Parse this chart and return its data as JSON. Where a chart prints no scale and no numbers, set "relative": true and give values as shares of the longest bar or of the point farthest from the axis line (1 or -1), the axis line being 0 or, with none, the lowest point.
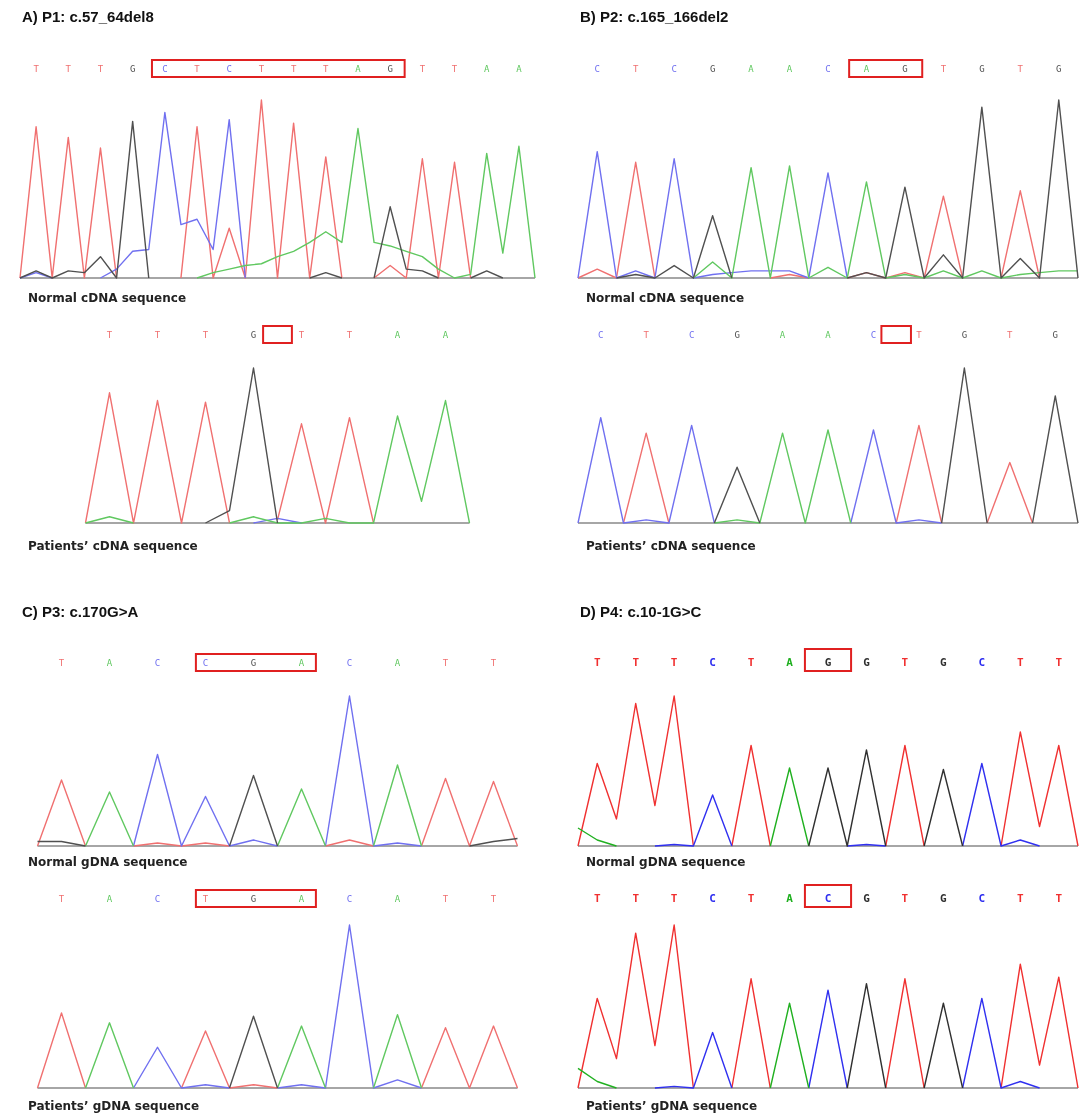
{
  "chart_data": [
    {
      "type": "line",
      "title": "A) P1: c.57_64del8",
      "xlabel": "Normal cDNA sequence",
      "relative": true,
      "categories": [
        null,
        "T",
        null,
        "T",
        null,
        "T",
        null,
        "G",
        null,
        "C",
        null,
        "T",
        null,
        "C",
        null,
        "T",
        null,
        "T",
        null,
        "T",
        null,
        "A",
        null,
        "G",
        null,
        "T",
        null,
        "T",
        null,
        "A",
        null,
        "A",
        null
      ],
      "series": [
        {
          "color": "#f07070",
          "values": [
            0,
            0.85,
            0,
            0.79,
            0,
            0.73,
            0,
            null,
            null,
            null,
            0,
            0.85,
            0,
            0.28,
            0,
            1,
            0,
            0.87,
            0,
            0.68,
            0,
            null,
            0,
            0.07,
            0,
            0.67,
            0,
            0.65,
            0,
            null,
            null,
            null,
            null
          ]
        },
        {
          "color": "#7070f0",
          "values": [
            0,
            0.03,
            0,
            null,
            null,
            0,
            0.05,
            0.15,
            0.16,
            0.93,
            0.3,
            0.33,
            0.16,
            0.89,
            0,
            null,
            null,
            null,
            null,
            null,
            null,
            null,
            null,
            null,
            null,
            null,
            null,
            null,
            null,
            null,
            null,
            null,
            null
          ]
        },
        {
          "color": "#60c860",
          "values": [
            null,
            null,
            null,
            null,
            null,
            null,
            null,
            null,
            null,
            null,
            null,
            0,
            0.03,
            0.05,
            0.07,
            0.08,
            0.12,
            0.15,
            0.2,
            0.26,
            0.2,
            0.84,
            0.2,
            0.18,
            0.15,
            0.12,
            0.05,
            0,
            0.02,
            0.7,
            0.14,
            0.74,
            0
          ]
        },
        {
          "color": "#505050",
          "values": [
            0,
            0.04,
            0,
            0.04,
            0.03,
            0.12,
            0,
            0.88,
            0,
            null,
            null,
            null,
            null,
            null,
            null,
            null,
            null,
            null,
            0,
            0.03,
            0,
            null,
            0,
            0.4,
            0.05,
            0.04,
            0,
            null,
            0,
            0.04,
            0,
            null,
            null
          ]
        }
      ]
    },
    {
      "type": "line",
      "xlabel": "Patients’ cDNA sequence",
      "relative": true,
      "categories": [
        null,
        "T",
        null,
        "T",
        null,
        "T",
        null,
        "G",
        null,
        "T",
        null,
        "T",
        null,
        "A",
        null,
        "A",
        null
      ],
      "series": [
        {
          "color": "#f07070",
          "values": [
            0,
            0.84,
            0,
            0.79,
            0,
            0.78,
            0,
            null,
            0.02,
            0.64,
            0,
            0.68,
            0,
            null,
            null,
            null,
            null
          ]
        },
        {
          "color": "#7070f0",
          "values": [
            null,
            null,
            null,
            null,
            null,
            null,
            null,
            0,
            0.03,
            0,
            null,
            null,
            null,
            null,
            null,
            null,
            null
          ]
        },
        {
          "color": "#60c860",
          "values": [
            0,
            0.04,
            0,
            null,
            null,
            null,
            0,
            0.04,
            0,
            0,
            0.03,
            0,
            0,
            0.69,
            0.14,
            0.79,
            0
          ]
        },
        {
          "color": "#505050",
          "values": [
            null,
            null,
            null,
            null,
            null,
            0,
            0.08,
            1,
            0,
            null,
            null,
            null,
            null,
            null,
            null,
            null,
            null
          ]
        }
      ]
    },
    {
      "type": "line",
      "title": "B) P2: c.165_166del2",
      "xlabel": "Normal cDNA sequence",
      "relative": true,
      "categories": [
        null,
        "C",
        null,
        "T",
        null,
        "C",
        null,
        "G",
        null,
        "A",
        null,
        "A",
        null,
        "C",
        null,
        "A",
        null,
        "G",
        null,
        "T",
        null,
        "G",
        null,
        "T",
        null,
        "G",
        null
      ],
      "series": [
        {
          "color": "#f07070",
          "values": [
            0,
            0.05,
            0,
            0.65,
            0,
            null,
            null,
            null,
            null,
            null,
            0,
            0.02,
            0,
            null,
            0,
            0.03,
            0,
            0.03,
            0,
            0.46,
            0,
            null,
            0,
            0.49,
            0,
            null,
            null
          ]
        },
        {
          "color": "#7070f0",
          "values": [
            0,
            0.71,
            0,
            0.04,
            0,
            0.67,
            0,
            0.02,
            0.03,
            0.04,
            0.04,
            0.04,
            0,
            0.59,
            0,
            null,
            null,
            null,
            null,
            null,
            null,
            null,
            null,
            null,
            null,
            null,
            null
          ]
        },
        {
          "color": "#60c860",
          "values": [
            null,
            null,
            null,
            null,
            null,
            null,
            0,
            0.09,
            0,
            0.62,
            0,
            0.63,
            0,
            0.06,
            0,
            0.54,
            0,
            0.02,
            0,
            0.04,
            0,
            0.04,
            0,
            0.02,
            0.03,
            0.04,
            0.04
          ]
        },
        {
          "color": "#505050",
          "values": [
            null,
            null,
            0,
            0.02,
            0,
            0.07,
            0,
            0.35,
            0,
            null,
            null,
            null,
            null,
            null,
            0,
            0.03,
            0,
            0.51,
            0,
            0.13,
            0,
            0.96,
            0,
            0.11,
            0,
            1,
            0
          ]
        }
      ]
    },
    {
      "type": "line",
      "xlabel": "Patients’ cDNA sequence",
      "relative": true,
      "categories": [
        null,
        "C",
        null,
        "T",
        null,
        "C",
        null,
        "G",
        null,
        "A",
        null,
        "A",
        null,
        "C",
        null,
        "T",
        null,
        "G",
        null,
        "T",
        null,
        "G",
        null
      ],
      "series": [
        {
          "color": "#f07070",
          "values": [
            null,
            null,
            0,
            0.58,
            0,
            null,
            null,
            null,
            null,
            null,
            null,
            null,
            null,
            null,
            0,
            0.63,
            0,
            null,
            0,
            0.39,
            0,
            null,
            null
          ]
        },
        {
          "color": "#7070f0",
          "values": [
            0,
            0.68,
            0,
            0.02,
            0,
            0.63,
            0,
            null,
            null,
            null,
            null,
            null,
            0,
            0.6,
            0,
            0.02,
            0,
            null,
            null,
            null,
            null,
            null,
            null
          ]
        },
        {
          "color": "#60c860",
          "values": [
            null,
            null,
            null,
            null,
            null,
            null,
            0,
            0.02,
            0,
            0.58,
            0,
            0.6,
            0,
            null,
            null,
            null,
            null,
            null,
            null,
            null,
            null,
            null,
            null
          ]
        },
        {
          "color": "#505050",
          "values": [
            null,
            null,
            null,
            null,
            null,
            null,
            0,
            0.36,
            0,
            null,
            null,
            null,
            null,
            null,
            null,
            null,
            0,
            1,
            0,
            null,
            0,
            0.82,
            0
          ]
        }
      ]
    },
    {
      "type": "line",
      "title": "C) P3: c.170G>A",
      "xlabel": "Normal gDNA sequence",
      "relative": true,
      "categories": [
        null,
        "T",
        null,
        "A",
        null,
        "C",
        null,
        "C",
        null,
        "G",
        null,
        "A",
        null,
        "C",
        null,
        "A",
        null,
        "T",
        null,
        "T",
        null
      ],
      "series": [
        {
          "color": "#f07070",
          "values": [
            0,
            0.44,
            0,
            null,
            0,
            0.02,
            0,
            0.02,
            0,
            null,
            null,
            null,
            0,
            0.04,
            0,
            null,
            0,
            0.45,
            0,
            0.43,
            0
          ]
        },
        {
          "color": "#7070f0",
          "values": [
            null,
            null,
            null,
            null,
            0,
            0.61,
            0,
            0.33,
            0,
            0.04,
            0,
            null,
            0,
            1,
            0,
            0.02,
            0,
            null,
            null,
            null,
            null
          ]
        },
        {
          "color": "#60c860",
          "values": [
            null,
            null,
            0,
            0.36,
            0,
            null,
            null,
            null,
            null,
            null,
            0,
            0.38,
            0,
            null,
            0,
            0.54,
            0,
            null,
            null,
            null,
            null
          ]
        },
        {
          "color": "#505050",
          "values": [
            0.03,
            0.03,
            0,
            null,
            null,
            null,
            null,
            null,
            0,
            0.47,
            0,
            null,
            null,
            null,
            null,
            null,
            null,
            null,
            0,
            0.03,
            0.05
          ]
        }
      ]
    },
    {
      "type": "line",
      "xlabel": "Patients’ gDNA sequence",
      "relative": true,
      "categories": [
        null,
        "T",
        null,
        "A",
        null,
        "C",
        null,
        "T",
        null,
        "G",
        null,
        "A",
        null,
        "C",
        null,
        "A",
        null,
        "T",
        null,
        "T",
        null
      ],
      "series": [
        {
          "color": "#f07070",
          "values": [
            0,
            0.46,
            0,
            null,
            null,
            null,
            0,
            0.35,
            0,
            0.02,
            0,
            null,
            null,
            null,
            null,
            null,
            0,
            0.37,
            0,
            0.38,
            0
          ]
        },
        {
          "color": "#7070f0",
          "values": [
            null,
            null,
            null,
            null,
            0,
            0.25,
            0,
            0.02,
            0,
            null,
            0,
            0.02,
            0,
            1,
            0,
            0.05,
            0,
            null,
            null,
            null,
            null
          ]
        },
        {
          "color": "#60c860",
          "values": [
            null,
            null,
            0,
            0.4,
            0,
            null,
            null,
            null,
            null,
            null,
            0,
            0.38,
            0,
            null,
            0,
            0.45,
            0,
            null,
            null,
            null,
            null
          ]
        },
        {
          "color": "#505050",
          "values": [
            null,
            null,
            null,
            null,
            null,
            null,
            null,
            null,
            0,
            0.44,
            0,
            null,
            null,
            null,
            null,
            null,
            null,
            null,
            null,
            null,
            null
          ]
        }
      ]
    },
    {
      "type": "line",
      "title": "D) P4: c.10-1G>C",
      "xlabel": "Normal gDNA sequence",
      "relative": true,
      "categories": [
        null,
        "T",
        null,
        "T",
        null,
        "T",
        null,
        "C",
        null,
        "T",
        null,
        "A",
        null,
        "G",
        null,
        "G",
        null,
        "T",
        null,
        "G",
        null,
        "C",
        null,
        "T",
        null,
        "T",
        null
      ],
      "series": [
        {
          "color": "#f03030",
          "values": [
            0,
            0.55,
            0.18,
            0.95,
            0.27,
            1,
            0,
            null,
            0,
            0.67,
            0,
            null,
            null,
            null,
            null,
            null,
            0,
            0.67,
            0,
            null,
            null,
            null,
            0,
            0.76,
            0.13,
            0.67,
            0
          ]
        },
        {
          "color": "#3030f0",
          "values": [
            null,
            null,
            null,
            null,
            0,
            0.01,
            0,
            0.34,
            0,
            null,
            null,
            null,
            null,
            null,
            0,
            0.01,
            0,
            null,
            null,
            null,
            0,
            0.55,
            0,
            0.04,
            0,
            null,
            null
          ]
        },
        {
          "color": "#20b020",
          "values": [
            0.12,
            0.04,
            0,
            null,
            null,
            null,
            null,
            null,
            null,
            null,
            0,
            0.52,
            0,
            null,
            null,
            null,
            null,
            null,
            null,
            null,
            null,
            null,
            null,
            null,
            null,
            null,
            null
          ]
        },
        {
          "color": "#303030",
          "values": [
            null,
            null,
            null,
            null,
            null,
            null,
            null,
            null,
            null,
            null,
            null,
            null,
            0,
            0.52,
            0,
            0.64,
            0,
            null,
            0,
            0.51,
            0,
            null,
            null,
            null,
            null,
            null,
            null
          ]
        }
      ]
    },
    {
      "type": "line",
      "xlabel": "Patients’ gDNA sequence",
      "relative": true,
      "categories": [
        null,
        "T",
        null,
        "T",
        null,
        "T",
        null,
        "C",
        null,
        "T",
        null,
        "A",
        null,
        "C",
        null,
        "G",
        null,
        "T",
        null,
        "G",
        null,
        "C",
        null,
        "T",
        null,
        "T",
        null
      ],
      "series": [
        {
          "color": "#f03030",
          "values": [
            0,
            0.55,
            0.18,
            0.95,
            0.26,
            1,
            0,
            null,
            0,
            0.67,
            0,
            null,
            null,
            null,
            null,
            null,
            0,
            0.67,
            0,
            null,
            null,
            null,
            0,
            0.76,
            0.14,
            0.68,
            0
          ]
        },
        {
          "color": "#3030f0",
          "values": [
            null,
            null,
            null,
            null,
            0,
            0.01,
            0,
            0.34,
            0,
            null,
            null,
            null,
            0,
            0.6,
            0,
            null,
            null,
            null,
            null,
            null,
            0,
            0.55,
            0,
            0.04,
            0,
            null,
            null
          ]
        },
        {
          "color": "#20b020",
          "values": [
            0.12,
            0.04,
            0,
            null,
            null,
            null,
            null,
            null,
            null,
            null,
            0,
            0.52,
            0,
            null,
            null,
            null,
            null,
            null,
            null,
            null,
            null,
            null,
            null,
            null,
            null,
            null,
            null
          ]
        },
        {
          "color": "#303030",
          "values": [
            null,
            null,
            null,
            null,
            null,
            null,
            null,
            null,
            null,
            null,
            null,
            null,
            null,
            null,
            0,
            0.64,
            0,
            null,
            0,
            0.52,
            0,
            null,
            null,
            null,
            null,
            null,
            null
          ]
        }
      ]
    }
  ]
}
